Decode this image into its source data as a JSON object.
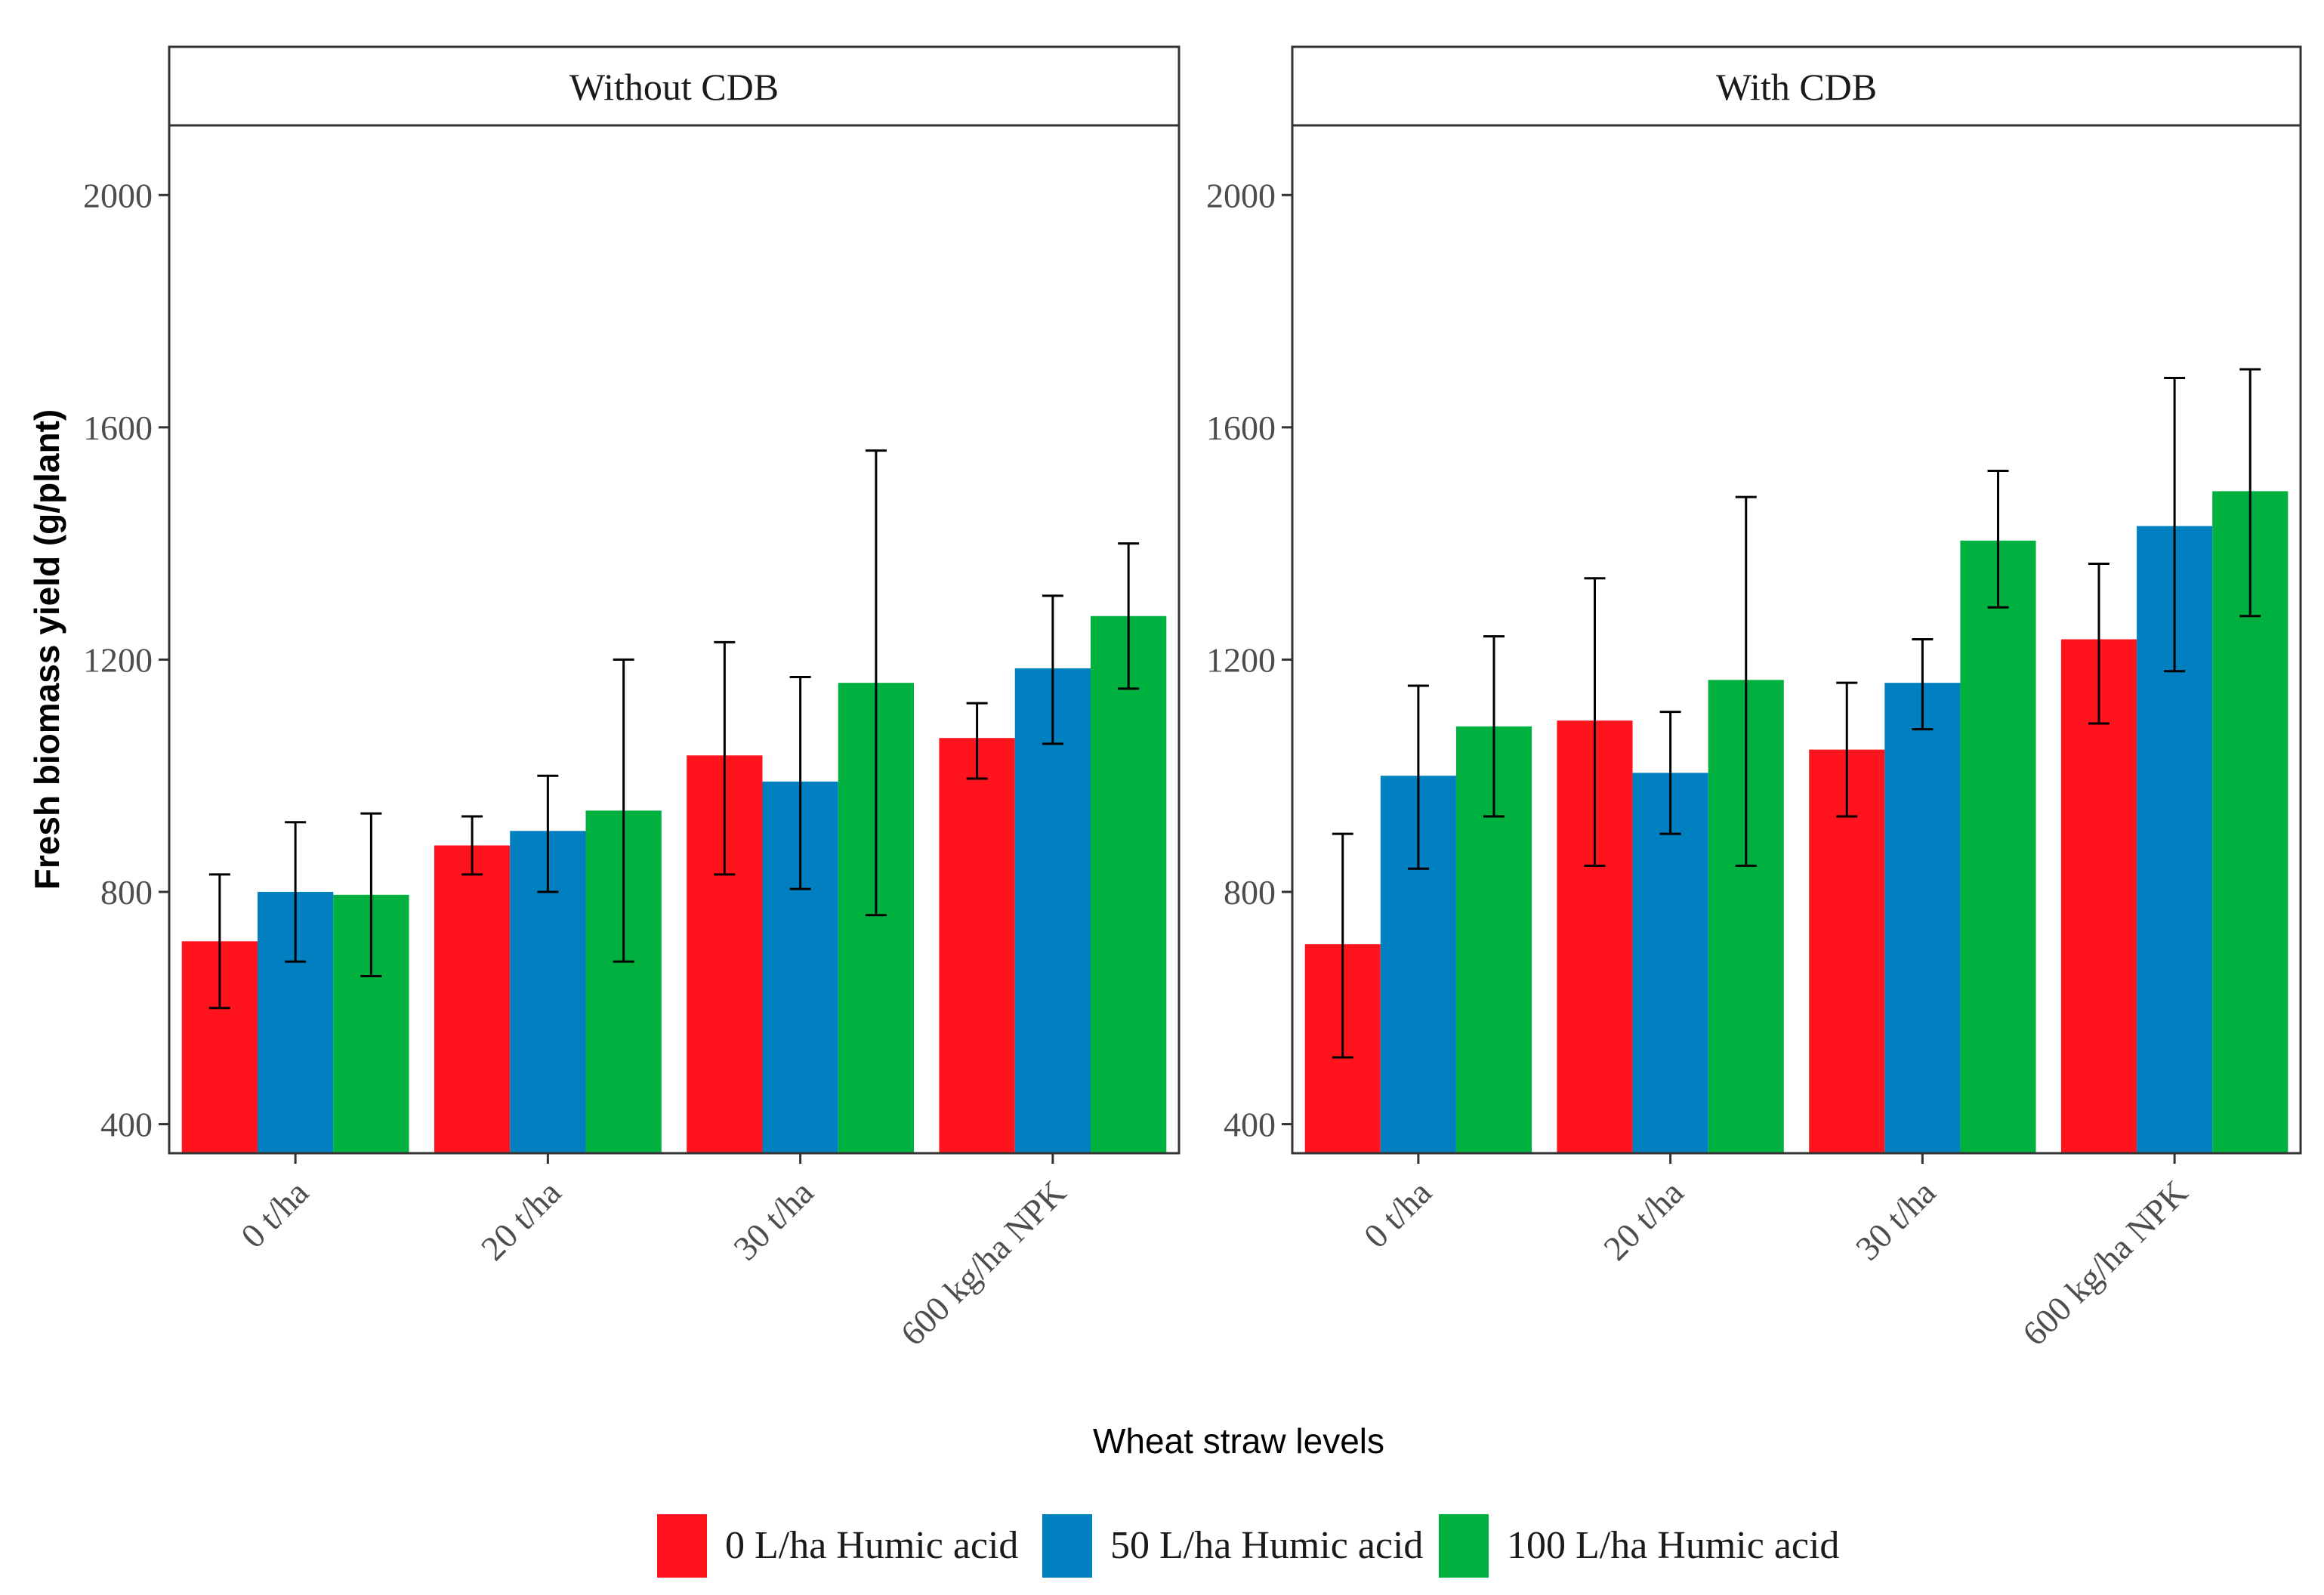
{
  "chart_data": {
    "type": "bar",
    "facets": [
      "Without CDB",
      "With CDB"
    ],
    "categories": [
      "0 t/ha",
      "20 t/ha",
      "30 t/ha",
      "600 kg/ha NPK"
    ],
    "xlabel": "Wheat straw levels",
    "ylabel": "Fresh biomass yield (g/plant)",
    "ylim": [
      350,
      2120
    ],
    "yticks": [
      400,
      800,
      1200,
      1600,
      2000
    ],
    "legend_position": "bottom",
    "grid": false,
    "series": [
      {
        "name": "0 L/ha Humic acid",
        "color": "#ff141e",
        "values": [
          [
            715,
            880,
            1035,
            1065
          ],
          [
            710,
            1095,
            1045,
            1235
          ]
        ],
        "errors": [
          [
            [
              600,
              830
            ],
            [
              830,
              930
            ],
            [
              830,
              1230
            ],
            [
              995,
              1125
            ]
          ],
          [
            [
              515,
              900
            ],
            [
              845,
              1340
            ],
            [
              930,
              1160
            ],
            [
              1090,
              1365
            ]
          ]
        ]
      },
      {
        "name": "50 L/ha Humic acid",
        "color": "#0080c0",
        "values": [
          [
            800,
            905,
            990,
            1185
          ],
          [
            1000,
            1005,
            1160,
            1430
          ]
        ],
        "errors": [
          [
            [
              680,
              920
            ],
            [
              800,
              1000
            ],
            [
              805,
              1170
            ],
            [
              1055,
              1310
            ]
          ],
          [
            [
              840,
              1155
            ],
            [
              900,
              1110
            ],
            [
              1080,
              1235
            ],
            [
              1180,
              1685
            ]
          ]
        ]
      },
      {
        "name": "100 L/ha Humic acid",
        "color": "#00b13f",
        "values": [
          [
            795,
            940,
            1160,
            1275
          ],
          [
            1085,
            1165,
            1405,
            1490
          ]
        ],
        "errors": [
          [
            [
              655,
              935
            ],
            [
              680,
              1200
            ],
            [
              760,
              1560
            ],
            [
              1150,
              1400
            ]
          ],
          [
            [
              930,
              1240
            ],
            [
              845,
              1480
            ],
            [
              1290,
              1525
            ],
            [
              1275,
              1700
            ]
          ]
        ]
      }
    ]
  }
}
